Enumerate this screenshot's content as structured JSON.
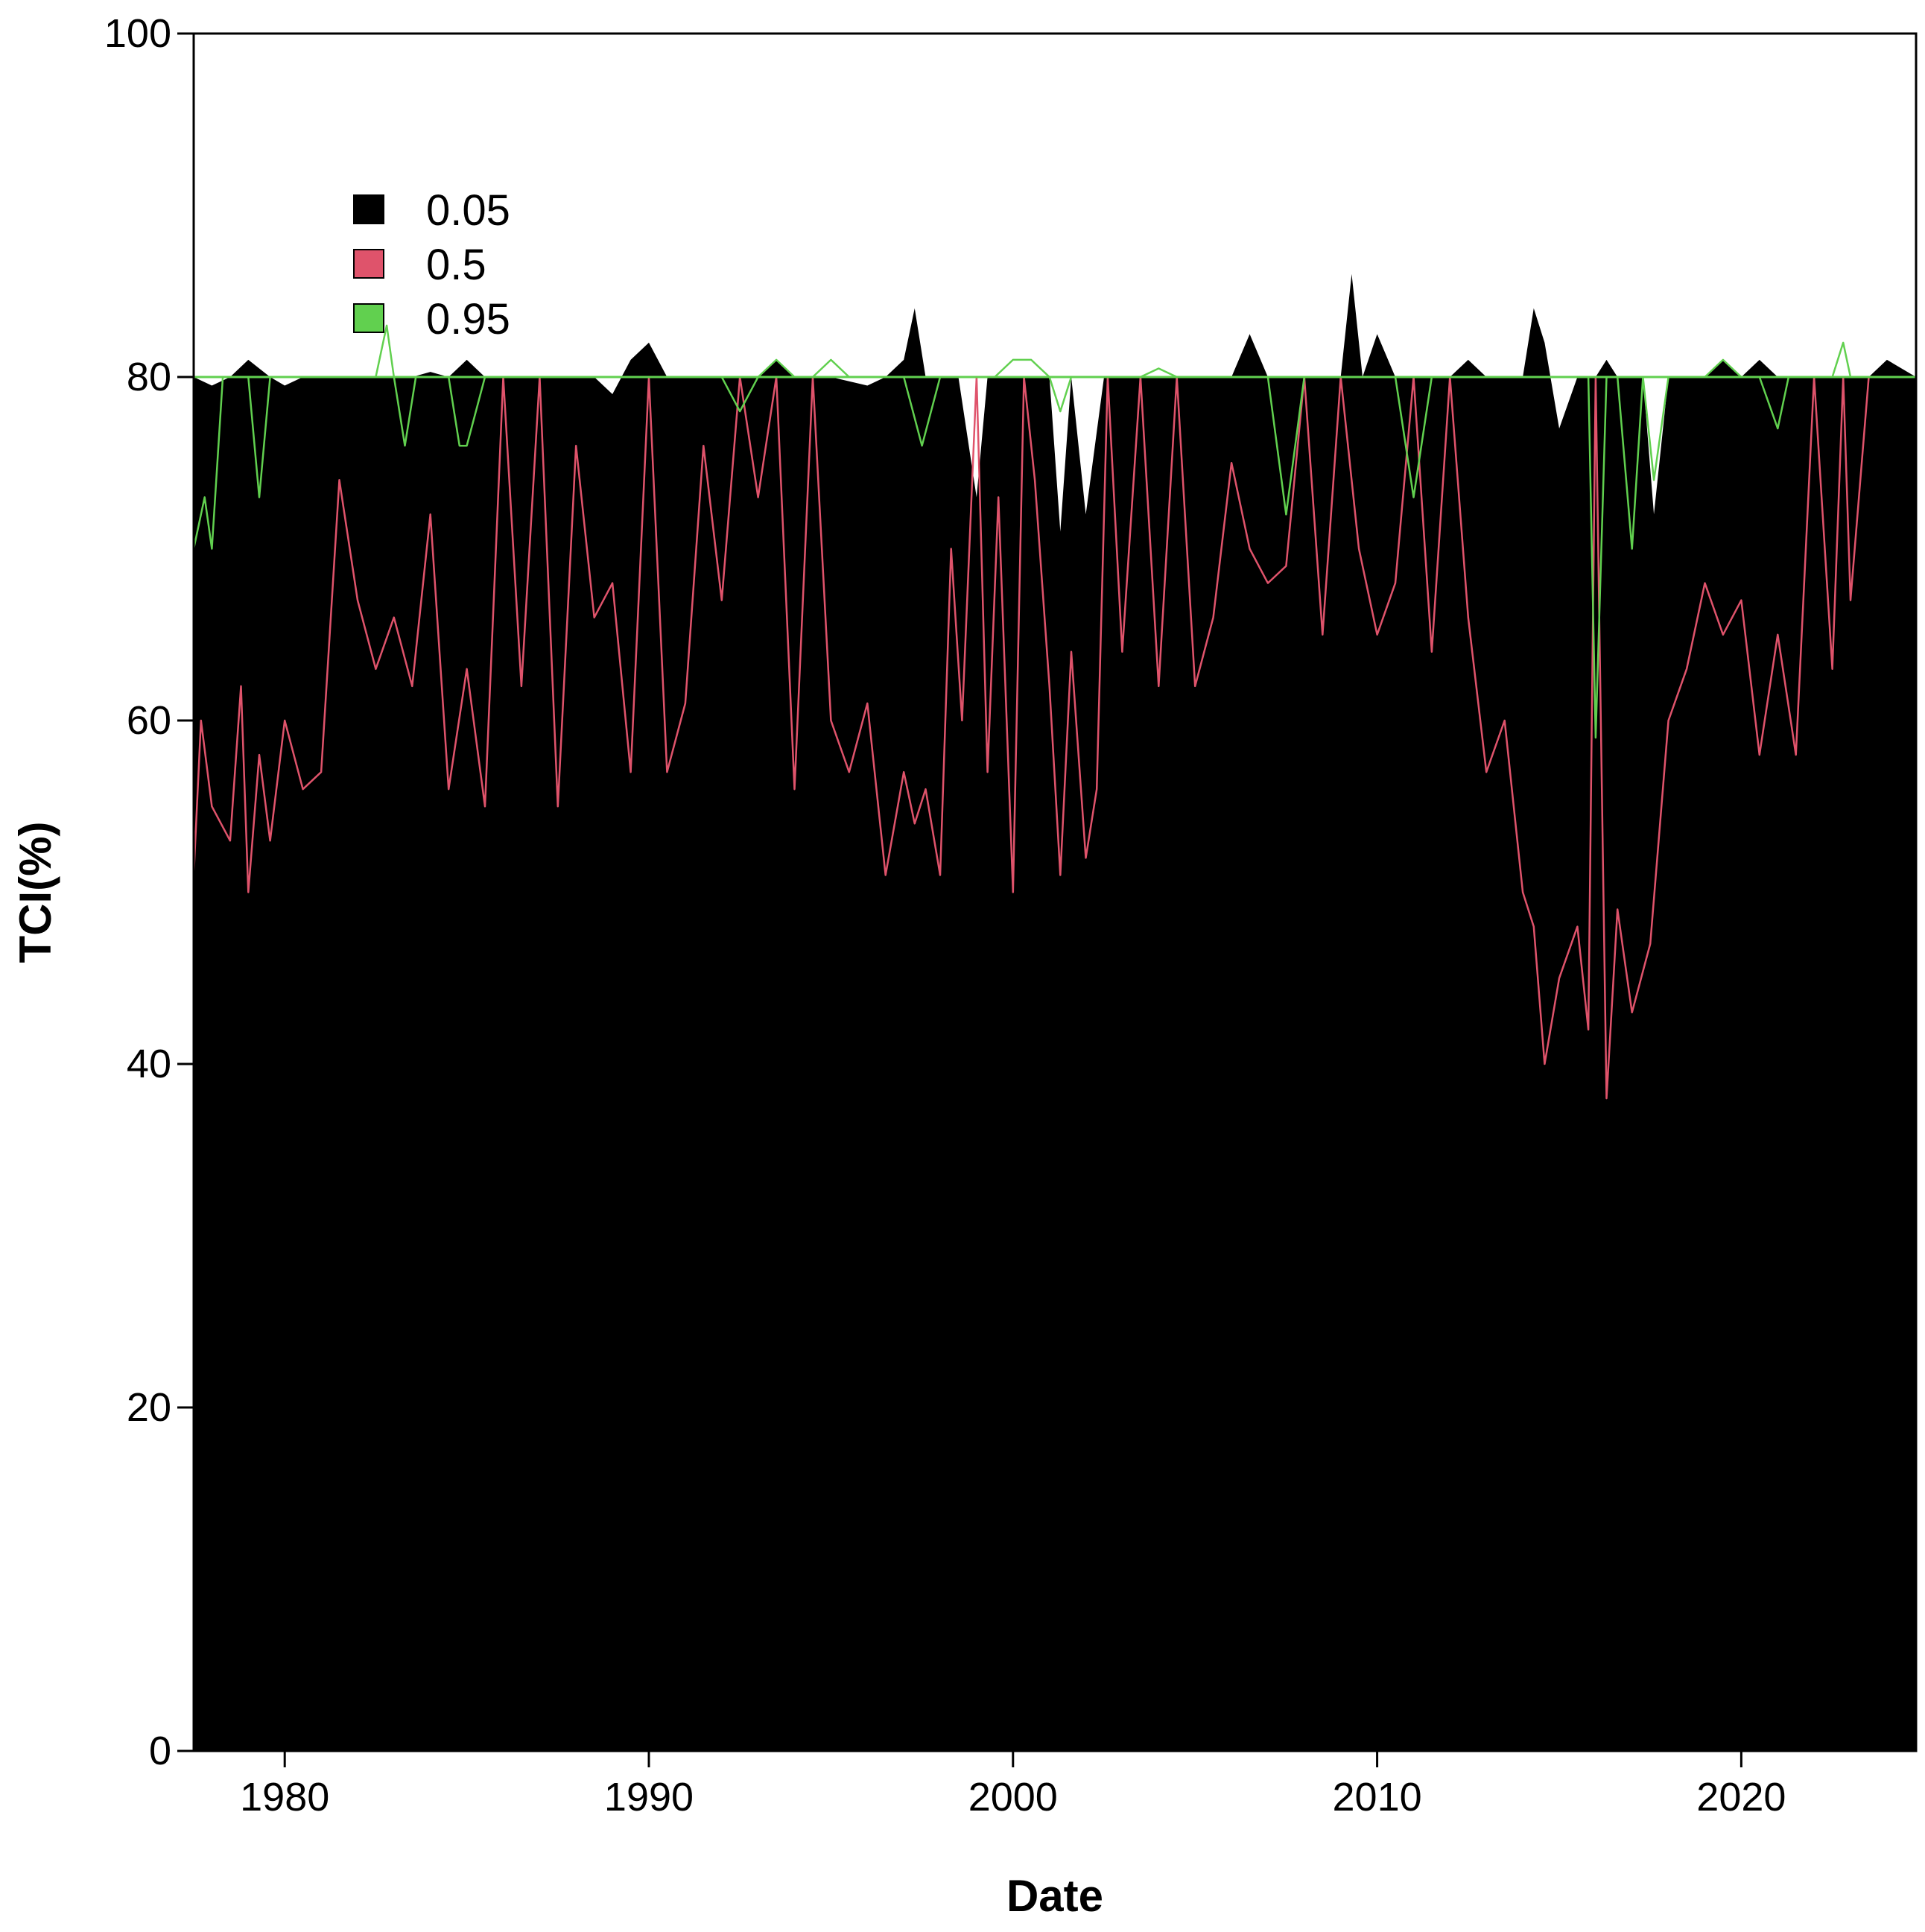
{
  "chart_data": {
    "type": "area",
    "xlabel": "Date",
    "ylabel": "TCI(%)",
    "xlim": [
      1977.5,
      2024.8
    ],
    "ylim": [
      0,
      100
    ],
    "x_ticks": [
      1980,
      1990,
      2000,
      2010,
      2020
    ],
    "y_ticks": [
      0,
      20,
      40,
      60,
      80,
      100
    ],
    "baseline": 80,
    "grid": false,
    "legend_position": "top-left",
    "series": [
      {
        "name": "0.05",
        "style": "filled",
        "color": "#000000",
        "x": [
          1977.5,
          1978.0,
          1978.5,
          1979.0,
          1979.3,
          1979.6,
          1980.0,
          1980.5,
          1981.0,
          1981.5,
          1982.0,
          1982.5,
          1983.0,
          1983.5,
          1984.0,
          1984.5,
          1985.0,
          1985.5,
          1986.0,
          1987.0,
          1988.0,
          1988.5,
          1989.0,
          1989.5,
          1990.0,
          1990.5,
          1991.0,
          1992.0,
          1993.0,
          1993.5,
          1994.0,
          1994.5,
          1995.0,
          1996.0,
          1996.5,
          1997.0,
          1997.3,
          1997.6,
          1998.0,
          1998.5,
          1999.0,
          1999.3,
          1999.6,
          2000.0,
          2000.5,
          2001.0,
          2001.3,
          2001.6,
          2002.0,
          2002.5,
          2003.0,
          2003.5,
          2004.0,
          2004.5,
          2005.0,
          2005.5,
          2006.0,
          2006.5,
          2007.0,
          2007.5,
          2008.0,
          2008.5,
          2009.0,
          2009.3,
          2009.6,
          2010.0,
          2010.5,
          2011.0,
          2011.5,
          2012.0,
          2012.5,
          2013.0,
          2013.5,
          2014.0,
          2014.3,
          2014.6,
          2015.0,
          2015.5,
          2015.8,
          2016.0,
          2016.3,
          2016.6,
          2017.0,
          2017.3,
          2017.6,
          2018.0,
          2018.5,
          2019.0,
          2019.5,
          2020.0,
          2020.5,
          2021.0,
          2021.5,
          2022.0,
          2022.5,
          2023.0,
          2023.5,
          2024.0,
          2024.8
        ],
        "y": [
          80,
          79.5,
          80,
          81,
          80.5,
          80,
          79.5,
          80,
          80,
          80,
          80,
          80,
          80,
          80,
          80.3,
          80,
          81,
          80,
          80,
          80,
          80,
          80,
          79,
          81,
          82,
          80,
          80,
          80,
          80,
          81,
          80,
          80,
          80,
          79.5,
          80,
          81,
          84,
          80,
          80,
          80,
          73,
          80,
          80,
          80,
          80,
          80,
          71,
          80,
          72,
          80,
          80,
          80,
          80,
          80,
          80,
          80,
          80,
          82.5,
          80,
          80,
          80,
          80,
          80,
          86,
          80,
          82.5,
          80,
          80,
          80,
          80,
          81,
          80,
          80,
          80,
          84,
          82,
          77,
          80,
          80,
          80,
          81,
          80,
          80,
          80,
          72,
          80,
          80,
          80,
          81,
          80,
          81,
          80,
          80,
          80,
          80,
          80,
          80,
          81,
          80
        ]
      },
      {
        "name": "0.5",
        "style": "line",
        "color": "#DF536B",
        "x": [
          1977.5,
          1977.7,
          1978.0,
          1978.5,
          1978.8,
          1979.0,
          1979.3,
          1979.6,
          1980.0,
          1980.5,
          1981.0,
          1981.5,
          1982.0,
          1982.5,
          1983.0,
          1983.5,
          1984.0,
          1984.5,
          1985.0,
          1985.5,
          1986.0,
          1986.5,
          1987.0,
          1987.5,
          1988.0,
          1988.5,
          1989.0,
          1989.5,
          1990.0,
          1990.5,
          1991.0,
          1991.5,
          1992.0,
          1992.5,
          1993.0,
          1993.5,
          1994.0,
          1994.5,
          1995.0,
          1995.5,
          1996.0,
          1996.5,
          1997.0,
          1997.3,
          1997.6,
          1998.0,
          1998.3,
          1998.6,
          1999.0,
          1999.3,
          1999.6,
          2000.0,
          2000.3,
          2000.6,
          2001.0,
          2001.3,
          2001.6,
          2002.0,
          2002.3,
          2002.6,
          2003.0,
          2003.5,
          2004.0,
          2004.5,
          2005.0,
          2005.5,
          2006.0,
          2006.5,
          2007.0,
          2007.5,
          2008.0,
          2008.5,
          2009.0,
          2009.5,
          2010.0,
          2010.5,
          2011.0,
          2011.5,
          2012.0,
          2012.5,
          2013.0,
          2013.5,
          2014.0,
          2014.3,
          2014.6,
          2015.0,
          2015.5,
          2015.8,
          2016.0,
          2016.3,
          2016.6,
          2017.0,
          2017.5,
          2018.0,
          2018.5,
          2019.0,
          2019.5,
          2020.0,
          2020.5,
          2021.0,
          2021.5,
          2022.0,
          2022.5,
          2022.8,
          2023.0,
          2023.5,
          2024.0,
          2024.8
        ],
        "y": [
          51,
          60,
          55,
          53,
          62,
          50,
          58,
          53,
          60,
          56,
          57,
          74,
          67,
          63,
          66,
          62,
          72,
          56,
          63,
          55,
          80,
          62,
          80,
          55,
          76,
          66,
          68,
          57,
          80,
          57,
          61,
          76,
          67,
          80,
          73,
          80,
          56,
          80,
          60,
          57,
          61,
          51,
          57,
          54,
          56,
          51,
          70,
          60,
          80,
          57,
          73,
          50,
          80,
          74,
          62,
          51,
          64,
          52,
          56,
          80,
          64,
          80,
          62,
          80,
          62,
          66,
          75,
          70,
          68,
          69,
          80,
          65,
          80,
          70,
          65,
          68,
          80,
          64,
          80,
          66,
          57,
          60,
          50,
          48,
          40,
          45,
          48,
          42,
          80,
          38,
          49,
          43,
          47,
          60,
          63,
          68,
          65,
          67,
          58,
          65,
          58,
          80,
          63,
          80,
          67,
          80,
          80,
          80
        ]
      },
      {
        "name": "0.95",
        "style": "line",
        "color": "#61D04F",
        "x": [
          1977.5,
          1977.8,
          1978.0,
          1978.3,
          1978.6,
          1979.0,
          1979.3,
          1979.6,
          1980.0,
          1980.5,
          1981.0,
          1982.0,
          1982.5,
          1982.8,
          1983.0,
          1983.3,
          1983.6,
          1984.0,
          1984.5,
          1984.8,
          1985.0,
          1985.5,
          1986.0,
          1987.0,
          1988.0,
          1989.0,
          1990.0,
          1991.0,
          1991.5,
          1992.0,
          1992.5,
          1993.0,
          1993.5,
          1994.0,
          1994.5,
          1995.0,
          1995.5,
          1996.0,
          1996.5,
          1997.0,
          1997.5,
          1998.0,
          1998.5,
          1999.0,
          1999.5,
          2000.0,
          2000.5,
          2001.0,
          2001.3,
          2001.6,
          2002.0,
          2002.5,
          2003.0,
          2003.5,
          2004.0,
          2004.5,
          2005.0,
          2005.5,
          2006.0,
          2006.5,
          2007.0,
          2007.5,
          2008.0,
          2008.5,
          2009.0,
          2009.5,
          2010.0,
          2010.5,
          2011.0,
          2011.5,
          2012.0,
          2012.5,
          2013.0,
          2013.5,
          2014.0,
          2014.5,
          2015.0,
          2015.5,
          2015.8,
          2016.0,
          2016.3,
          2016.6,
          2017.0,
          2017.3,
          2017.6,
          2018.0,
          2018.5,
          2019.0,
          2019.5,
          2020.0,
          2020.5,
          2021.0,
          2021.3,
          2021.6,
          2022.0,
          2022.5,
          2022.8,
          2023.0,
          2023.5,
          2024.0,
          2024.8
        ],
        "y": [
          70,
          73,
          70,
          80,
          80,
          80,
          73,
          80,
          80,
          80,
          80,
          80,
          80,
          83,
          80,
          76,
          80,
          80,
          80,
          76,
          76,
          80,
          80,
          80,
          80,
          80,
          80,
          80,
          80,
          80,
          78,
          80,
          81,
          80,
          80,
          81,
          80,
          80,
          80,
          80,
          76,
          80,
          80,
          80,
          80,
          81,
          81,
          80,
          78,
          80,
          80,
          80,
          80,
          80,
          80.5,
          80,
          80,
          80,
          80,
          80,
          80,
          72,
          80,
          80,
          80,
          80,
          80,
          80,
          73,
          80,
          80,
          80,
          80,
          80,
          80,
          80,
          80,
          80,
          80,
          59,
          80,
          80,
          70,
          80,
          74,
          80,
          80,
          80,
          81,
          80,
          80,
          77,
          80,
          80,
          80,
          80,
          82,
          80,
          80,
          80,
          80
        ]
      }
    ]
  }
}
